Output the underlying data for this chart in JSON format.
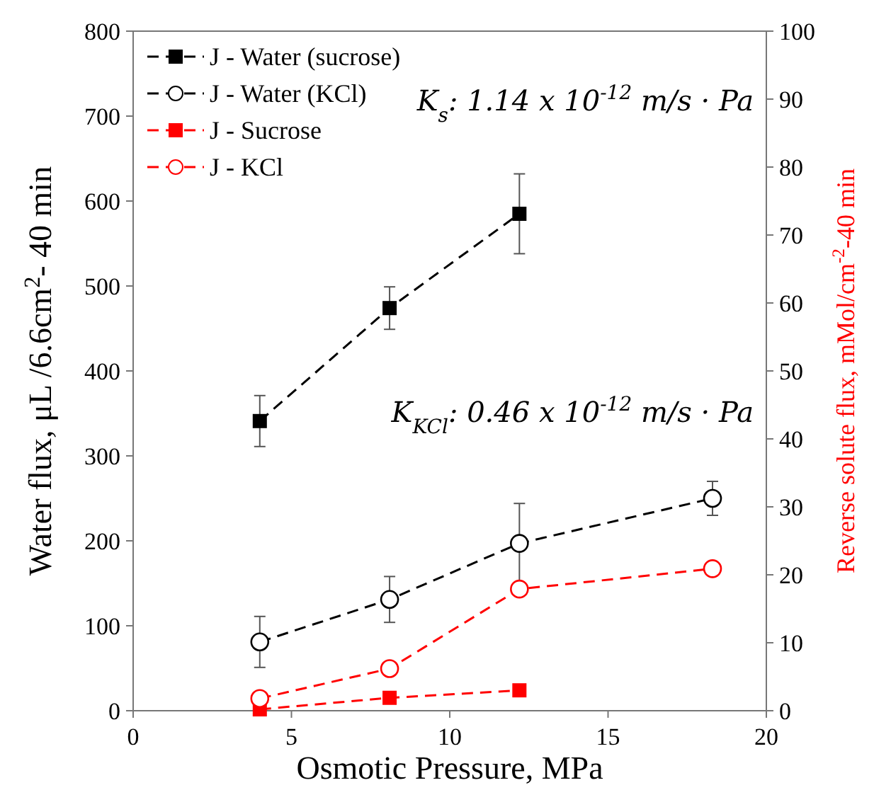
{
  "chart_data": {
    "type": "line",
    "xlabel": "Osmotic Pressure, MPa",
    "ylabel": "Water  flux,  μL /6.6cm$^{2}$- 40 min",
    "y2label": "Reverse solute flux, mMol/cm$^{-2}$-40 min",
    "xlim": [
      0,
      20
    ],
    "xticks": [
      0,
      5,
      10,
      15,
      20
    ],
    "ylim": [
      0,
      800
    ],
    "yticks": [
      0,
      100,
      200,
      300,
      400,
      500,
      600,
      700,
      800
    ],
    "y2lim": [
      0,
      100
    ],
    "y2ticks": [
      0,
      10,
      20,
      30,
      40,
      50,
      60,
      70,
      80,
      90,
      100
    ],
    "grid": false,
    "legend": "top left",
    "line_style": "dashed",
    "series": [
      {
        "name": "J - Water (sucrose)",
        "color": "#000000",
        "marker": "square",
        "x": [
          4,
          8.1,
          12.2
        ],
        "values": [
          341,
          474,
          585
        ],
        "errors": [
          30,
          25,
          47
        ]
      },
      {
        "name": "J - Water (KCl)",
        "color": "#000000",
        "marker": "circle",
        "x": [
          4,
          8.1,
          12.2,
          18.3
        ],
        "values": [
          81,
          131,
          197,
          250
        ],
        "errors": [
          30,
          27,
          47,
          20
        ]
      },
      {
        "name": "J - Sucrose",
        "color": "#ff0000",
        "marker": "square",
        "axis": "y2",
        "x": [
          4,
          8.1,
          12.2
        ],
        "values": [
          0.2,
          1.9,
          3
        ]
      },
      {
        "name": "J - KCl",
        "color": "#ff0000",
        "marker": "circle",
        "axis": "y2",
        "x": [
          4,
          8.1,
          12.2,
          18.3
        ],
        "values": [
          1.8,
          6.2,
          17.9,
          20.9
        ]
      }
    ],
    "annotations": [
      "K$_{s}$: 1.14 x 10$^{-12}$ m/s · Pa",
      "K$_{KCl}$: 0.46 x 10$^{-12}$ m/s · Pa"
    ]
  }
}
